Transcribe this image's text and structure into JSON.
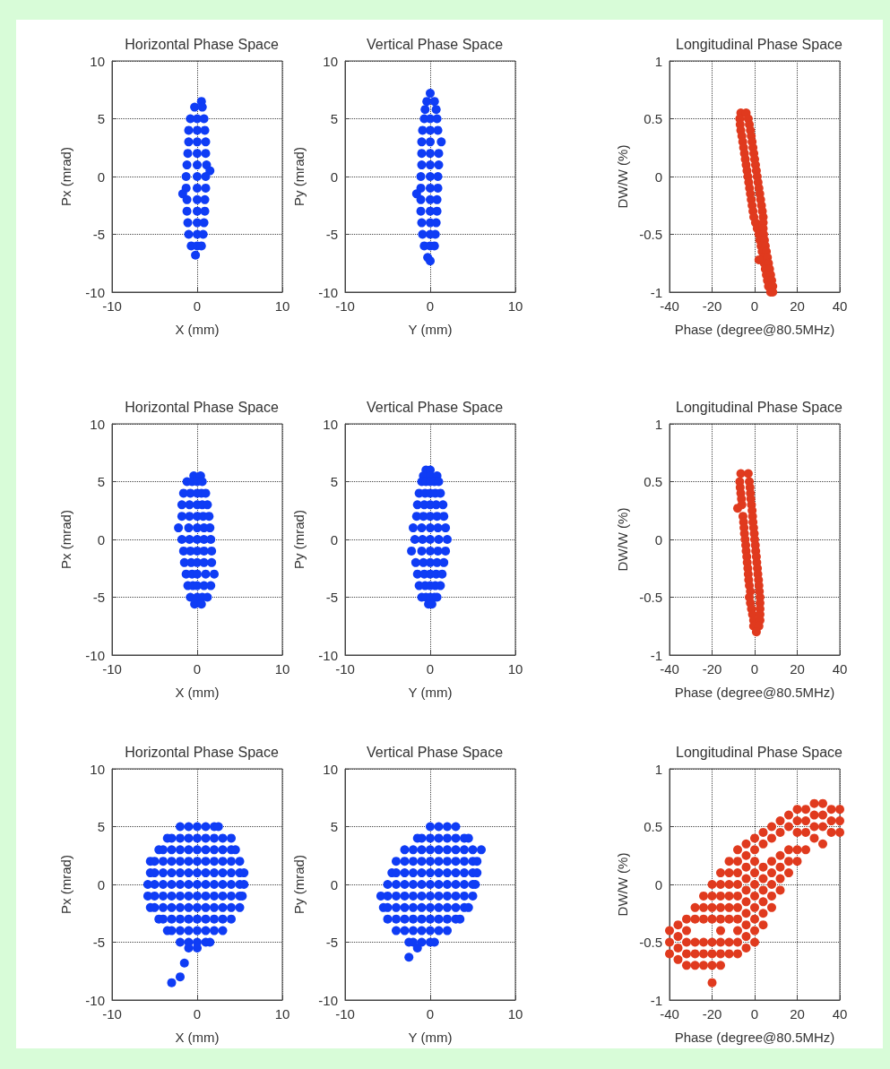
{
  "chart_data": [
    {
      "type": "scatter",
      "title": "Horizontal Phase Space",
      "xlabel": "X (mm)",
      "ylabel": "Px (mrad)",
      "color": "#0f3cf5",
      "marker": "circle",
      "grid": true,
      "xlim": [
        -10,
        10
      ],
      "xticks": [
        -10,
        0,
        10
      ],
      "ylim": [
        -10,
        10
      ],
      "yticks": [
        -10,
        -5,
        0,
        5,
        10
      ],
      "x": [
        0.5,
        -0.3,
        0.6,
        -0.8,
        0,
        0.8,
        -1,
        0,
        0.9,
        -1,
        0,
        1,
        -1.1,
        0,
        1,
        -1.2,
        0,
        1.1,
        1.5,
        -1.3,
        0,
        1,
        -1.3,
        0,
        1,
        -1.7,
        -1.2,
        0,
        0.9,
        -1.2,
        0,
        0.9,
        -1.1,
        0,
        0.8,
        -1,
        0,
        0.7,
        -0.7,
        0,
        0.5,
        -0.2
      ],
      "values": [
        6.5,
        6,
        6,
        5,
        5,
        5,
        4,
        4,
        4,
        3,
        3,
        3,
        2,
        2,
        2,
        1,
        1,
        1,
        0.5,
        0,
        0,
        0,
        -1,
        -1,
        -1,
        -1.5,
        -2,
        -2,
        -2,
        -3,
        -3,
        -3,
        -4,
        -4,
        -4,
        -5,
        -5,
        -5,
        -6,
        -6,
        -6,
        -6.8
      ]
    },
    {
      "type": "scatter",
      "title": "Vertical Phase Space",
      "xlabel": "Y (mm)",
      "ylabel": "Py (mrad)",
      "color": "#0f3cf5",
      "marker": "circle",
      "grid": true,
      "xlim": [
        -10,
        10
      ],
      "xticks": [
        -10,
        0,
        10
      ],
      "ylim": [
        -10,
        10
      ],
      "yticks": [
        -10,
        -5,
        0,
        5,
        10
      ],
      "x": [
        0,
        -0.4,
        0.5,
        -0.6,
        0.7,
        -0.7,
        0,
        0.8,
        -0.9,
        0,
        0.9,
        -1,
        0,
        1.3,
        -1,
        0,
        1,
        -1,
        0,
        1,
        -1.1,
        0,
        0.9,
        -1.1,
        0,
        0.9,
        -1.6,
        -1.1,
        0,
        0.8,
        -1.1,
        0,
        0.8,
        -1,
        0,
        0.7,
        -0.9,
        0,
        0.6,
        -0.7,
        0,
        0.5,
        -0.3,
        0
      ],
      "values": [
        7.2,
        6.5,
        6.5,
        5.8,
        5.8,
        5,
        5,
        5,
        4,
        4,
        4,
        3,
        3,
        3,
        2,
        2,
        2,
        1,
        1,
        1,
        0,
        0,
        0,
        -1,
        -1,
        -1,
        -1.5,
        -2,
        -2,
        -2,
        -3,
        -3,
        -3,
        -4,
        -4,
        -4,
        -5,
        -5,
        -5,
        -6,
        -6,
        -6,
        -7,
        -7.3
      ]
    },
    {
      "type": "scatter",
      "title": "Longitudinal Phase Space",
      "xlabel": "Phase (degree@80.5MHz)",
      "ylabel": "DW/W (%)",
      "color": "#e03a1e",
      "marker": "circle",
      "grid": true,
      "xlim": [
        -40,
        40
      ],
      "xticks": [
        -40,
        -20,
        0,
        20,
        40
      ],
      "ylim": [
        -1,
        1
      ],
      "yticks": [
        -1,
        -0.5,
        0,
        0.5,
        1
      ],
      "x": [
        -6.5,
        -4,
        -7,
        -3,
        -6.8,
        -2.5,
        -6.5,
        -2,
        -6,
        -1.6,
        -5.6,
        -1.2,
        -5.2,
        -0.8,
        -4.8,
        -0.4,
        -4.4,
        0,
        -4,
        0.4,
        -3.6,
        0.8,
        -3.2,
        1.2,
        -2.8,
        1.6,
        -2.4,
        2,
        -2,
        2.4,
        -1.6,
        2.8,
        -1.2,
        3.2,
        -0.8,
        3.6,
        -0.4,
        4,
        0.4,
        4,
        1.2,
        4,
        2,
        4.2,
        2.4,
        4.6,
        3,
        5,
        3.5,
        5.5,
        4,
        6,
        4.5,
        6.5,
        5,
        7,
        5.5,
        7.5,
        6,
        8,
        6.5,
        8.5,
        7.5,
        8.5,
        2
      ],
      "values": [
        0.55,
        0.55,
        0.5,
        0.5,
        0.45,
        0.45,
        0.4,
        0.4,
        0.35,
        0.35,
        0.3,
        0.3,
        0.25,
        0.25,
        0.2,
        0.2,
        0.15,
        0.15,
        0.1,
        0.1,
        0.05,
        0.05,
        0,
        0,
        -0.05,
        -0.05,
        -0.1,
        -0.1,
        -0.15,
        -0.15,
        -0.2,
        -0.2,
        -0.25,
        -0.25,
        -0.3,
        -0.3,
        -0.35,
        -0.35,
        -0.4,
        -0.4,
        -0.45,
        -0.45,
        -0.5,
        -0.5,
        -0.55,
        -0.55,
        -0.6,
        -0.6,
        -0.65,
        -0.65,
        -0.7,
        -0.7,
        -0.75,
        -0.75,
        -0.8,
        -0.8,
        -0.85,
        -0.85,
        -0.9,
        -0.9,
        -0.95,
        -0.95,
        -1,
        -1,
        -0.72
      ]
    },
    {
      "type": "scatter",
      "title": "Horizontal Phase Space",
      "xlabel": "X (mm)",
      "ylabel": "Px (mrad)",
      "color": "#0f3cf5",
      "marker": "circle",
      "grid": true,
      "xlim": [
        -10,
        10
      ],
      "xticks": [
        -10,
        0,
        10
      ],
      "ylim": [
        -10,
        10
      ],
      "yticks": [
        -10,
        -5,
        0,
        5,
        10
      ],
      "x": [
        -0.4,
        0.4,
        -1.2,
        -0.6,
        0,
        0.6,
        -1.6,
        -0.8,
        0,
        0.5,
        1,
        -1.8,
        -0.9,
        0,
        0.6,
        1.2,
        -1.8,
        -0.9,
        0,
        0.7,
        1.4,
        -2.2,
        -1,
        0,
        0.8,
        1.5,
        -1.8,
        -0.9,
        0,
        0.8,
        1.6,
        -1.6,
        -0.8,
        0,
        0.8,
        1.7,
        -1.5,
        -0.7,
        0,
        0.8,
        1.7,
        -1.3,
        -0.6,
        0,
        1,
        2,
        -1.1,
        -0.5,
        0,
        0.8,
        1.6,
        -0.8,
        0,
        0.6,
        1.2,
        -0.3,
        0.5
      ],
      "values": [
        5.5,
        5.5,
        5,
        5,
        5,
        5,
        4,
        4,
        4,
        4,
        4,
        3,
        3,
        3,
        3,
        3,
        2,
        2,
        2,
        2,
        2,
        1,
        1,
        1,
        1,
        1,
        0,
        0,
        0,
        0,
        0,
        -1,
        -1,
        -1,
        -1,
        -1,
        -2,
        -2,
        -2,
        -2,
        -2,
        -3,
        -3,
        -3,
        -3,
        -3,
        -4,
        -4,
        -4,
        -4,
        -4,
        -5,
        -5,
        -5,
        -5,
        -5.6,
        -5.6
      ]
    },
    {
      "type": "scatter",
      "title": "Vertical Phase Space",
      "xlabel": "Y (mm)",
      "ylabel": "Py (mrad)",
      "color": "#0f3cf5",
      "marker": "circle",
      "grid": true,
      "xlim": [
        -10,
        10
      ],
      "xticks": [
        -10,
        0,
        10
      ],
      "ylim": [
        -10,
        10
      ],
      "yticks": [
        -10,
        -5,
        0,
        5,
        10
      ],
      "x": [
        -0.5,
        0,
        -0.8,
        0,
        0.8,
        -1,
        -0.5,
        0,
        0.5,
        1,
        -1.3,
        -0.6,
        0,
        0.6,
        1.2,
        -1.5,
        -0.7,
        0,
        0.7,
        1.5,
        -1.6,
        -0.8,
        0,
        0.8,
        1.6,
        -2,
        -1,
        0,
        0.9,
        1.8,
        -1.8,
        -0.9,
        0,
        1,
        2,
        -2.2,
        -1,
        0,
        0.9,
        1.8,
        -1.7,
        -0.8,
        0,
        0.8,
        1.6,
        -1.5,
        -0.7,
        0,
        0.7,
        1.4,
        -1.3,
        -0.6,
        0,
        0.6,
        1.2,
        -1,
        -0.5,
        0,
        0.5,
        0.8,
        -0.2,
        0.2
      ],
      "values": [
        6,
        6,
        5.5,
        5.5,
        5.5,
        5,
        5,
        5,
        5,
        5,
        4,
        4,
        4,
        4,
        4,
        3,
        3,
        3,
        3,
        3,
        2,
        2,
        2,
        2,
        2,
        1,
        1,
        1,
        1,
        1,
        0,
        0,
        0,
        0,
        0,
        -1,
        -1,
        -1,
        -1,
        -1,
        -2,
        -2,
        -2,
        -2,
        -2,
        -3,
        -3,
        -3,
        -3,
        -3,
        -4,
        -4,
        -4,
        -4,
        -4,
        -5,
        -5,
        -5,
        -5,
        -5,
        -5.6,
        -5.6
      ]
    },
    {
      "type": "scatter",
      "title": "Longitudinal Phase Space",
      "xlabel": "Phase (degree@80.5MHz)",
      "ylabel": "DW/W (%)",
      "color": "#e03a1e",
      "marker": "circle",
      "grid": true,
      "xlim": [
        -40,
        40
      ],
      "xticks": [
        -40,
        -20,
        0,
        20,
        40
      ],
      "ylim": [
        -1,
        1
      ],
      "yticks": [
        -1,
        -0.5,
        0,
        0.5,
        1
      ],
      "x": [
        -6.5,
        -3,
        -7,
        -2.5,
        -6.8,
        -2.2,
        -6.5,
        -2,
        -6.2,
        -1.8,
        -6,
        -1.5,
        -1.2,
        -5.5,
        -1,
        -5.2,
        -0.8,
        -5,
        -0.5,
        -4.8,
        -0.2,
        -4.5,
        0,
        -4.2,
        0.3,
        -4,
        0.5,
        -3.7,
        0.8,
        -3.5,
        1,
        -3.2,
        1.3,
        -3,
        1.5,
        -2.8,
        1.8,
        -2.5,
        2,
        -2,
        2.2,
        -2.5,
        2.5,
        -2,
        2.5,
        -1.5,
        2.5,
        -1,
        2.5,
        -0.5,
        2.5,
        -0.5,
        2,
        0.8,
        -8
      ],
      "values": [
        0.57,
        0.57,
        0.5,
        0.5,
        0.45,
        0.45,
        0.4,
        0.4,
        0.35,
        0.35,
        0.3,
        0.3,
        0.25,
        0.2,
        0.2,
        0.15,
        0.15,
        0.1,
        0.1,
        0.05,
        0.05,
        0,
        0,
        -0.05,
        -0.05,
        -0.1,
        -0.1,
        -0.15,
        -0.15,
        -0.2,
        -0.2,
        -0.25,
        -0.25,
        -0.3,
        -0.3,
        -0.35,
        -0.35,
        -0.4,
        -0.4,
        -0.45,
        -0.45,
        -0.5,
        -0.5,
        -0.55,
        -0.55,
        -0.6,
        -0.6,
        -0.65,
        -0.65,
        -0.7,
        -0.7,
        -0.75,
        -0.75,
        -0.8,
        0.27
      ]
    },
    {
      "type": "scatter",
      "title": "Horizontal Phase Space",
      "xlabel": "X (mm)",
      "ylabel": "Px (mrad)",
      "color": "#0f3cf5",
      "marker": "circle",
      "grid": true,
      "xlim": [
        -10,
        10
      ],
      "xticks": [
        -10,
        0,
        10
      ],
      "ylim": [
        -10,
        10
      ],
      "yticks": [
        -10,
        -5,
        0,
        5,
        10
      ],
      "x": [
        -2,
        -1,
        0,
        1,
        2,
        2.5,
        -3.5,
        -3,
        -2,
        -1,
        0,
        1,
        2,
        3,
        4,
        -4.5,
        -4,
        -3,
        -2,
        -1,
        0,
        1,
        2,
        3,
        4,
        4.5,
        -5.5,
        -5,
        -4,
        -3,
        -2,
        -1,
        0,
        1,
        2,
        3,
        4,
        5,
        -5.5,
        -5,
        -4,
        -3,
        -2,
        -1,
        0,
        1,
        2,
        3,
        4,
        5,
        5.5,
        -5.8,
        -5,
        -4,
        -3,
        -2,
        -1,
        0,
        1,
        2,
        3,
        4,
        5,
        5.5,
        -5.8,
        -5,
        -4,
        -3,
        -2,
        -1,
        0,
        1,
        2,
        3,
        4,
        5,
        5.3,
        -5.5,
        -5,
        -4,
        -3,
        -2,
        -1,
        0,
        1,
        2,
        3,
        4,
        5,
        -4.5,
        -4,
        -3,
        -2,
        -1,
        0,
        1,
        2,
        3,
        4,
        -3.5,
        -3,
        -2,
        -1,
        0,
        1,
        2,
        3,
        -2,
        -1,
        0,
        1,
        1.5,
        -1,
        0,
        -1.5,
        -2,
        -3
      ],
      "values": [
        5,
        5,
        5,
        5,
        5,
        5,
        4,
        4,
        4,
        4,
        4,
        4,
        4,
        4,
        4,
        3,
        3,
        3,
        3,
        3,
        3,
        3,
        3,
        3,
        3,
        3,
        2,
        2,
        2,
        2,
        2,
        2,
        2,
        2,
        2,
        2,
        2,
        2,
        1,
        1,
        1,
        1,
        1,
        1,
        1,
        1,
        1,
        1,
        1,
        1,
        1,
        0,
        0,
        0,
        0,
        0,
        0,
        0,
        0,
        0,
        0,
        0,
        0,
        0,
        -1,
        -1,
        -1,
        -1,
        -1,
        -1,
        -1,
        -1,
        -1,
        -1,
        -1,
        -1,
        -1,
        -2,
        -2,
        -2,
        -2,
        -2,
        -2,
        -2,
        -2,
        -2,
        -2,
        -2,
        -2,
        -3,
        -3,
        -3,
        -3,
        -3,
        -3,
        -3,
        -3,
        -3,
        -3,
        -4,
        -4,
        -4,
        -4,
        -4,
        -4,
        -4,
        -4,
        -5,
        -5,
        -5,
        -5,
        -5,
        -5.5,
        -5.5,
        -6.8,
        -8,
        -8.5
      ]
    },
    {
      "type": "scatter",
      "title": "Vertical Phase Space",
      "xlabel": "Y (mm)",
      "ylabel": "Py (mrad)",
      "color": "#0f3cf5",
      "marker": "circle",
      "grid": true,
      "xlim": [
        -10,
        10
      ],
      "xticks": [
        -10,
        0,
        10
      ],
      "ylim": [
        -10,
        10
      ],
      "yticks": [
        -10,
        -5,
        0,
        5,
        10
      ],
      "x": [
        0,
        1,
        2,
        3,
        -1.5,
        -1,
        0,
        1,
        2,
        3,
        4,
        4.5,
        -3,
        -2,
        -1,
        0,
        1,
        2,
        3,
        4,
        5,
        6,
        -4,
        -3,
        -2,
        -1,
        0,
        1,
        2,
        3,
        4,
        5,
        5.5,
        -4.5,
        -4,
        -3,
        -2,
        -1,
        0,
        1,
        2,
        3,
        4,
        5,
        5.5,
        -5,
        -4,
        -3,
        -2,
        -1,
        0,
        1,
        2,
        3,
        4,
        5,
        5.3,
        -5.8,
        -5,
        -4,
        -3,
        -2,
        -1,
        0,
        1,
        2,
        3,
        4,
        5,
        -5.5,
        -5,
        -4,
        -3,
        -2,
        -1,
        0,
        1,
        2,
        3,
        4,
        4.5,
        -5,
        -4,
        -3,
        -2,
        -1,
        0,
        1,
        2,
        3,
        3.5,
        -4,
        -3,
        -2,
        -1,
        0,
        1,
        2,
        -2.5,
        -2,
        -1,
        0,
        0.5,
        -1.5,
        -2.5
      ],
      "values": [
        5,
        5,
        5,
        5,
        4,
        4,
        4,
        4,
        4,
        4,
        4,
        4,
        3,
        3,
        3,
        3,
        3,
        3,
        3,
        3,
        3,
        3,
        2,
        2,
        2,
        2,
        2,
        2,
        2,
        2,
        2,
        2,
        2,
        1,
        1,
        1,
        1,
        1,
        1,
        1,
        1,
        1,
        1,
        1,
        1,
        0,
        0,
        0,
        0,
        0,
        0,
        0,
        0,
        0,
        0,
        0,
        0,
        -1,
        -1,
        -1,
        -1,
        -1,
        -1,
        -1,
        -1,
        -1,
        -1,
        -1,
        -1,
        -2,
        -2,
        -2,
        -2,
        -2,
        -2,
        -2,
        -2,
        -2,
        -2,
        -2,
        -2,
        -3,
        -3,
        -3,
        -3,
        -3,
        -3,
        -3,
        -3,
        -3,
        -3,
        -4,
        -4,
        -4,
        -4,
        -4,
        -4,
        -4,
        -5,
        -5,
        -5,
        -5,
        -5,
        -5.5,
        -6.3
      ]
    },
    {
      "type": "scatter",
      "title": "Longitudinal Phase Space",
      "xlabel": "Phase (degree@80.5MHz)",
      "ylabel": "DW/W (%)",
      "color": "#e03a1e",
      "marker": "circle",
      "grid": true,
      "xlim": [
        -40,
        40
      ],
      "xticks": [
        -40,
        -20,
        0,
        20,
        40
      ],
      "ylim": [
        -1,
        1
      ],
      "yticks": [
        -1,
        -0.5,
        0,
        0.5,
        1
      ],
      "x": [
        -40,
        -40,
        -40,
        -36,
        -36,
        -36,
        -36,
        -32,
        -32,
        -32,
        -32,
        -32,
        -28,
        -28,
        -28,
        -28,
        -28,
        -24,
        -24,
        -24,
        -24,
        -24,
        -24,
        -20,
        -20,
        -20,
        -20,
        -20,
        -20,
        -20,
        -20,
        -16,
        -16,
        -16,
        -16,
        -16,
        -16,
        -16,
        -16,
        -16,
        -12,
        -12,
        -12,
        -12,
        -12,
        -12,
        -12,
        -12,
        -8,
        -8,
        -8,
        -8,
        -8,
        -8,
        -8,
        -8,
        -8,
        -8,
        -4,
        -4,
        -4,
        -4,
        -4,
        -4,
        -4,
        -4,
        -4,
        -4,
        0,
        0,
        0,
        0,
        0,
        0,
        0,
        0,
        0,
        0,
        4,
        4,
        4,
        4,
        4,
        4,
        4,
        4,
        8,
        8,
        8,
        8,
        8,
        8,
        8,
        12,
        12,
        12,
        12,
        12,
        12,
        16,
        16,
        16,
        16,
        16,
        20,
        20,
        20,
        20,
        20,
        24,
        24,
        24,
        24,
        28,
        28,
        28,
        28,
        32,
        32,
        32,
        32,
        36,
        36,
        36,
        40,
        40,
        40
      ],
      "values": [
        -0.4,
        -0.5,
        -0.6,
        -0.35,
        -0.45,
        -0.55,
        -0.65,
        -0.3,
        -0.4,
        -0.5,
        -0.6,
        -0.7,
        -0.2,
        -0.3,
        -0.5,
        -0.6,
        -0.7,
        -0.1,
        -0.2,
        -0.3,
        -0.5,
        -0.6,
        -0.7,
        0,
        -0.1,
        -0.2,
        -0.3,
        -0.5,
        -0.6,
        -0.7,
        -0.85,
        0.1,
        0,
        -0.1,
        -0.2,
        -0.3,
        -0.4,
        -0.5,
        -0.6,
        -0.7,
        0.2,
        0.1,
        0,
        -0.1,
        -0.2,
        -0.3,
        -0.5,
        -0.6,
        0.3,
        0.2,
        0.1,
        0,
        -0.1,
        -0.2,
        -0.3,
        -0.4,
        -0.5,
        -0.6,
        0.35,
        0.25,
        0.15,
        0.05,
        -0.05,
        -0.15,
        -0.25,
        -0.35,
        -0.45,
        -0.55,
        0.4,
        0.3,
        0.2,
        0.1,
        0,
        -0.1,
        -0.2,
        -0.3,
        -0.4,
        -0.5,
        0.45,
        0.35,
        0.15,
        0.05,
        -0.05,
        -0.15,
        -0.25,
        -0.35,
        0.5,
        0.4,
        0.2,
        0.1,
        0,
        -0.1,
        -0.2,
        0.55,
        0.45,
        0.25,
        0.15,
        0.05,
        -0.05,
        0.6,
        0.5,
        0.3,
        0.2,
        0.1,
        0.65,
        0.55,
        0.45,
        0.3,
        0.2,
        0.65,
        0.55,
        0.45,
        0.3,
        0.7,
        0.6,
        0.5,
        0.4,
        0.7,
        0.6,
        0.5,
        0.35,
        0.65,
        0.55,
        0.45,
        0.65,
        0.55,
        0.45
      ]
    }
  ]
}
